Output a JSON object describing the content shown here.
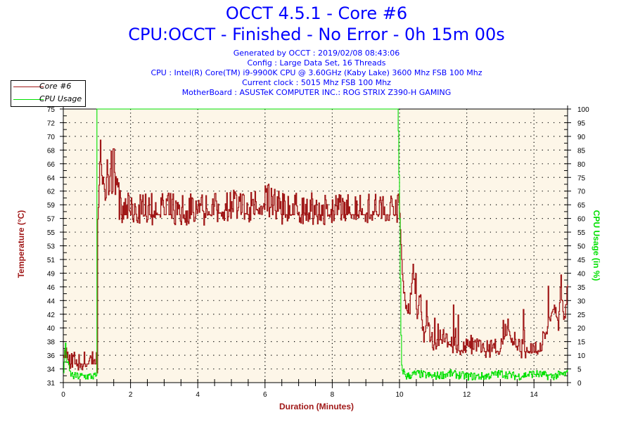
{
  "header": {
    "title": "OCCT 4.5.1 - Core #6",
    "subtitle": "CPU:OCCT - Finished - No Error - 0h 15m 00s",
    "info_lines": [
      "Generated by OCCT : 2019/02/08 08:43:06",
      "Config : Large Data Set, 16 Threads",
      "CPU : Intel(R) Core(TM) i9-9900K CPU @ 3.60GHz (Kaby Lake) 3600 Mhz FSB 100 Mhz",
      "Current clock : 5015 Mhz FSB 100 Mhz",
      "MotherBoard : ASUSTeK COMPUTER INC.: ROG STRIX Z390-H GAMING"
    ]
  },
  "legend": {
    "items": [
      {
        "label": "Core #6",
        "color": "#a01818"
      },
      {
        "label": "CPU Usage",
        "color": "#00e000"
      }
    ]
  },
  "colors": {
    "temperature": "#a01818",
    "cpu_usage": "#00e000",
    "plot_background": "#fdf6e8",
    "text_blue": "#0000ff"
  },
  "chart_data": {
    "type": "line",
    "title": "OCCT 4.5.1 - Core #6",
    "subtitle": "CPU:OCCT - Finished - No Error - 0h 15m 00s",
    "xlabel": "Duration (Minutes)",
    "ylabel": "Temperature (°C)",
    "y2label": "CPU Usage (in %)",
    "xlim": [
      0,
      15
    ],
    "ylim": [
      31,
      75
    ],
    "y2lim": [
      0,
      100
    ],
    "x_ticks": [
      "0",
      "2",
      "4",
      "6",
      "8",
      "10",
      "12",
      "14"
    ],
    "y_ticks": [
      "31",
      "34",
      "36",
      "38",
      "40",
      "42",
      "44",
      "46",
      "49",
      "51",
      "53",
      "55",
      "57",
      "59",
      "62",
      "64",
      "66",
      "68",
      "70",
      "72",
      "75"
    ],
    "y2_ticks": [
      "0",
      "5",
      "10",
      "15",
      "20",
      "25",
      "30",
      "35",
      "40",
      "45",
      "50",
      "55",
      "60",
      "65",
      "70",
      "75",
      "80",
      "85",
      "90",
      "95",
      "100"
    ],
    "grid": true,
    "legend_position": "top-left",
    "series": [
      {
        "name": "Core #6",
        "axis": "left",
        "x": [
          0,
          0.05,
          0.1,
          0.15,
          0.2,
          0.3,
          0.4,
          0.5,
          0.6,
          0.7,
          0.8,
          0.9,
          1.0,
          1.02,
          1.05,
          1.1,
          1.15,
          1.2,
          1.25,
          1.3,
          1.35,
          1.4,
          1.45,
          1.5,
          1.55,
          1.6,
          1.65,
          1.7,
          1.8,
          2.0,
          2.5,
          3.0,
          3.5,
          4.0,
          4.5,
          5.0,
          5.5,
          5.8,
          6.0,
          6.2,
          6.5,
          7.0,
          7.5,
          8.0,
          8.5,
          9.0,
          9.5,
          9.9,
          10.0,
          10.05,
          10.1,
          10.2,
          10.3,
          10.4,
          10.5,
          10.6,
          10.7,
          10.8,
          11.0,
          11.2,
          11.5,
          11.8,
          12.0,
          12.3,
          12.5,
          12.8,
          13.0,
          13.2,
          13.5,
          13.8,
          14.0,
          14.2,
          14.4,
          14.5,
          14.6,
          14.7,
          14.8,
          14.9,
          15.0
        ],
        "values": [
          36,
          35,
          35,
          34,
          34,
          34,
          34,
          34,
          34,
          34,
          34,
          34,
          34,
          58,
          60,
          70,
          59,
          63,
          61,
          66,
          60,
          67,
          62,
          69,
          61,
          64,
          59,
          58,
          58,
          58,
          58,
          58,
          58,
          58,
          58,
          59,
          58,
          59,
          60,
          59,
          58,
          58,
          58,
          58,
          58,
          58,
          58,
          58,
          58,
          52,
          46,
          43,
          42,
          50,
          41,
          45,
          38,
          40,
          37,
          38,
          37,
          36,
          37,
          36,
          36,
          36,
          36,
          40,
          36,
          36,
          36,
          36,
          40,
          42,
          43,
          39,
          46,
          40,
          47
        ]
      },
      {
        "name": "CPU Usage",
        "axis": "right",
        "x": [
          0,
          0.05,
          0.1,
          0.2,
          0.3,
          0.5,
          0.7,
          0.9,
          0.99,
          1.0,
          9.95,
          10.0,
          10.05,
          10.2,
          10.5,
          11.0,
          11.5,
          12.0,
          12.5,
          13.0,
          13.5,
          14.0,
          14.5,
          15.0
        ],
        "values": [
          3,
          14,
          8,
          3,
          2,
          2,
          2,
          2,
          2,
          100,
          100,
          60,
          5,
          2,
          3,
          2,
          3,
          2,
          2,
          3,
          2,
          3,
          2,
          3
        ]
      }
    ]
  }
}
